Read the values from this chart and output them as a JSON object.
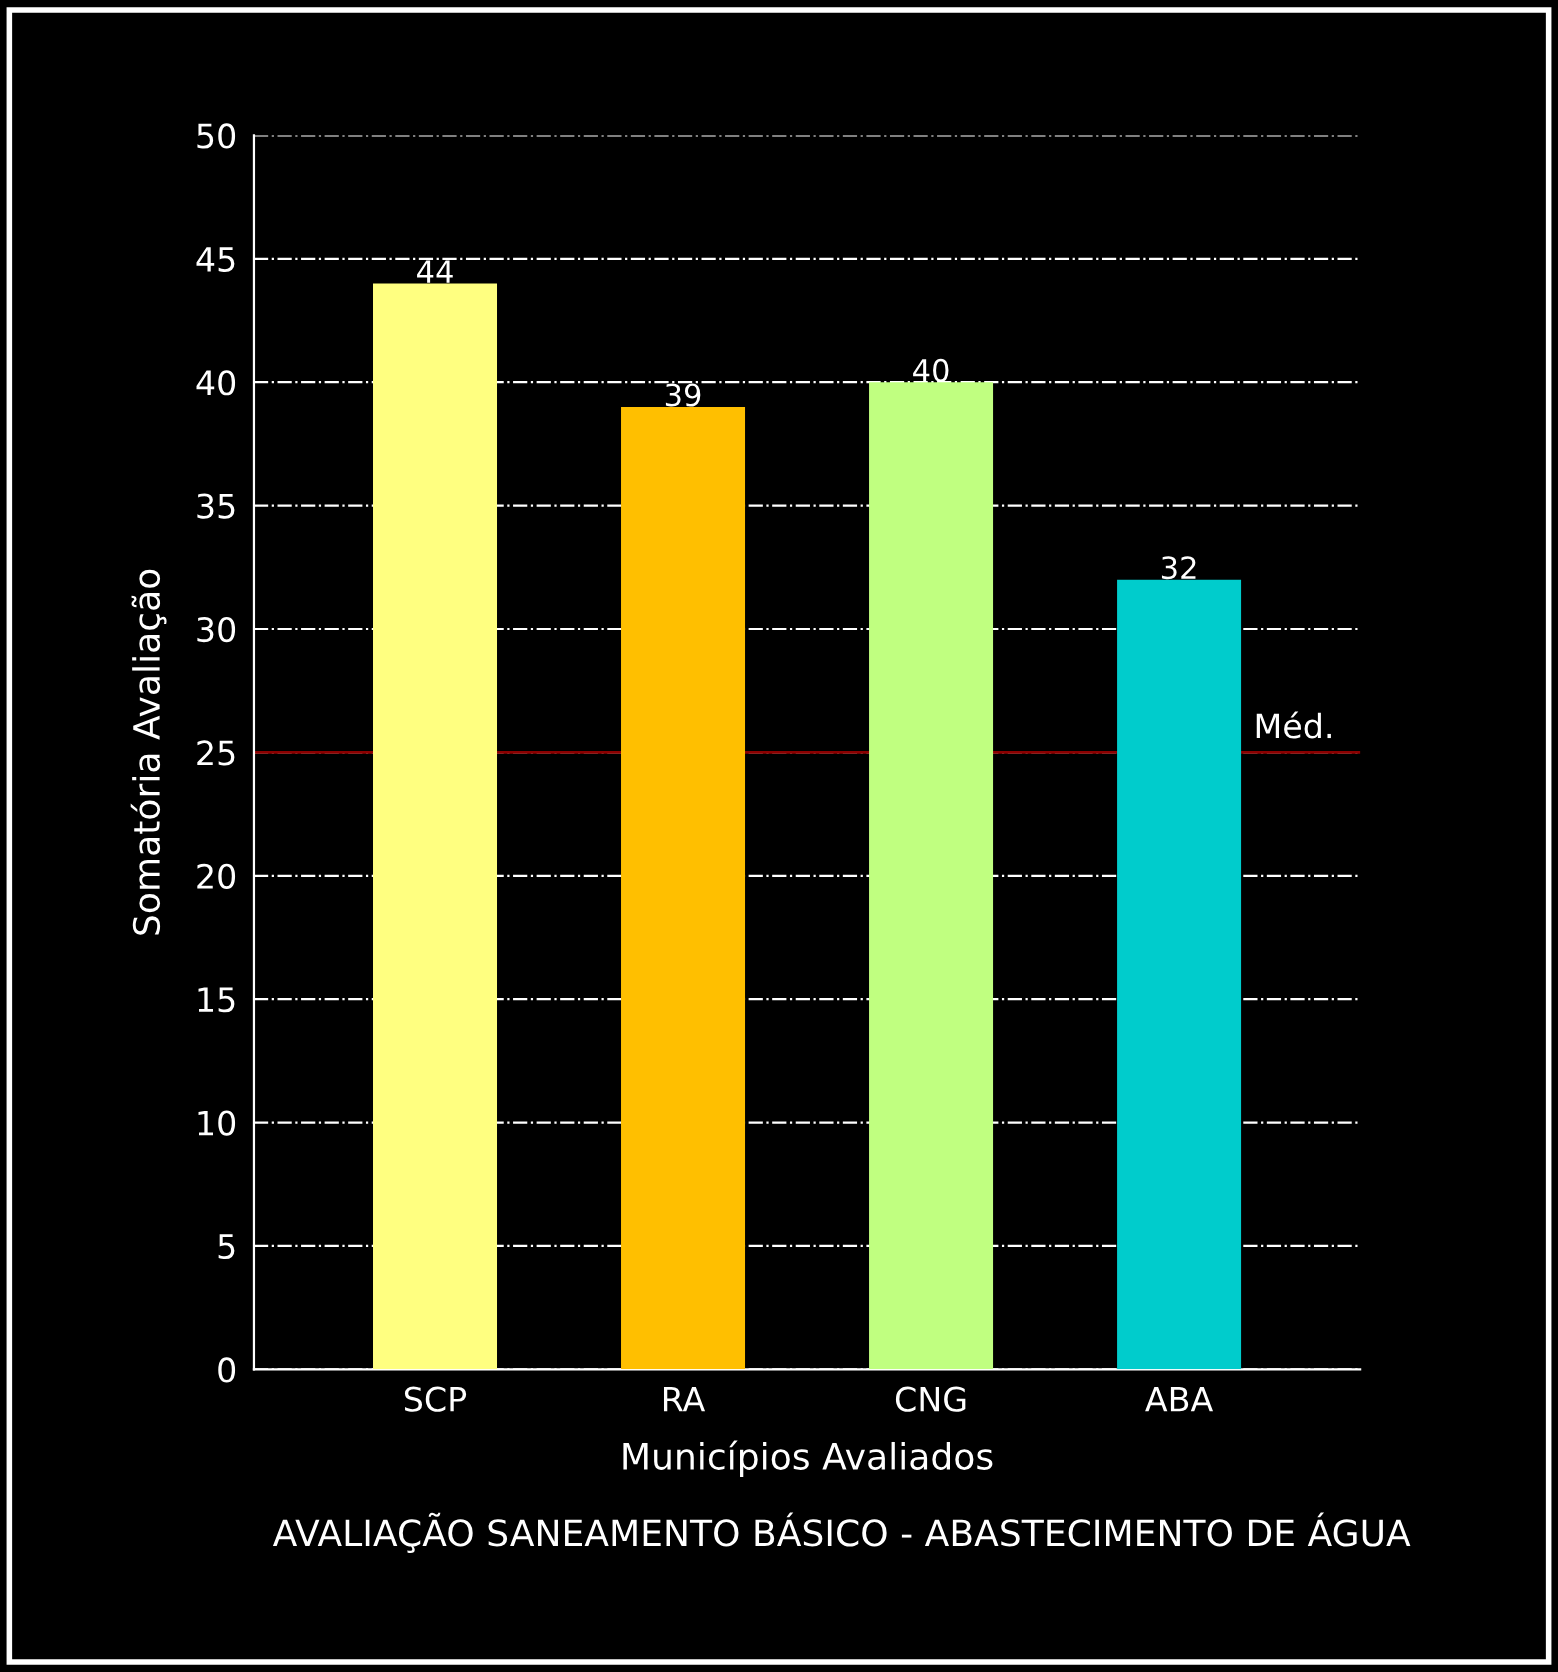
{
  "chart_data": {
    "type": "bar",
    "categories": [
      "SCP",
      "RA",
      "CNG",
      "ABA"
    ],
    "values": [
      44,
      39,
      40,
      32
    ],
    "colors": [
      "#ffff80",
      "#ffbf00",
      "#c0ff80",
      "#00cccc"
    ],
    "data_labels": true,
    "xlabel": "Municípios Avaliados",
    "ylabel": "Somatória Avaliação",
    "ylim": [
      0,
      50
    ],
    "yticks": [
      0,
      5,
      10,
      15,
      20,
      25,
      30,
      35,
      40,
      45,
      50
    ],
    "grid": "y",
    "ref_lines": [
      {
        "axis": "y",
        "value": 25,
        "label": "Méd.",
        "color": "#8b0000"
      }
    ],
    "annotations": [
      "AVALIAÇÃO SANEAMENTO BÁSICO - ABASTECIMENTO DE ÁGUA"
    ]
  }
}
